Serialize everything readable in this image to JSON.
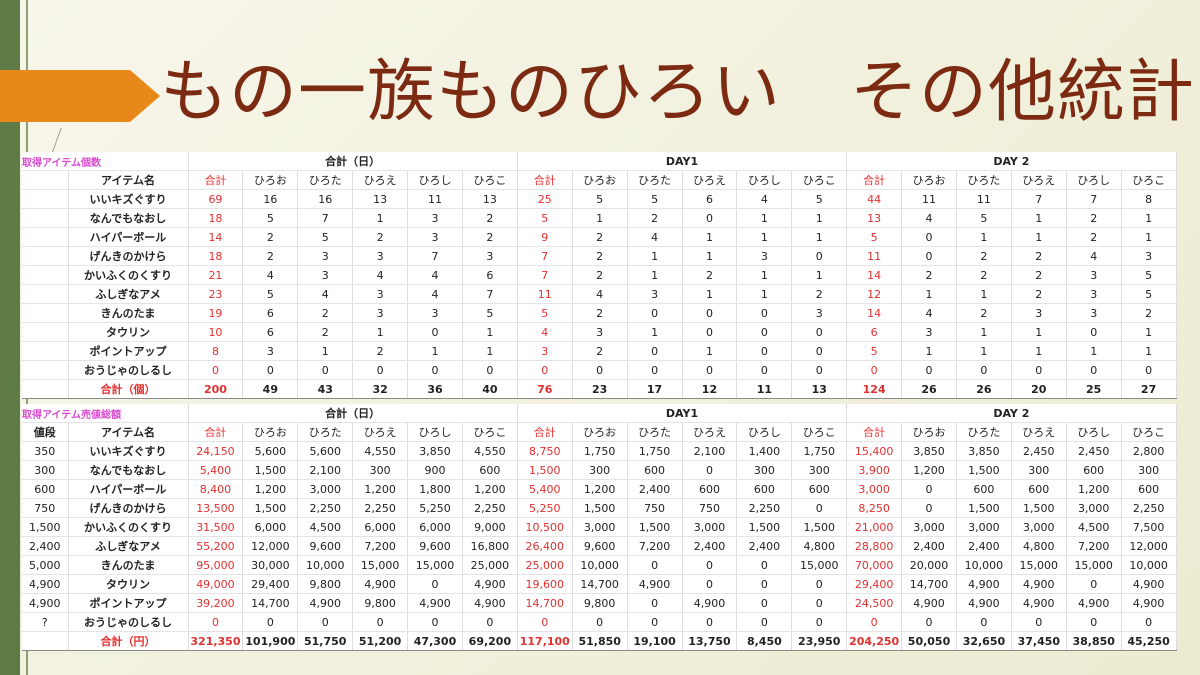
{
  "slide": {
    "title": "もの一族ものひろい　その他統計"
  },
  "colors": {
    "accent_arrow": "#e8871a",
    "title": "#7c2a12",
    "red": "#e23030",
    "pink": "#d84cd0",
    "sidebar": "#5e7a45"
  },
  "players": [
    "ひろお",
    "ひろた",
    "ひろえ",
    "ひろし",
    "ひろこ"
  ],
  "table1": {
    "label": "取得アイテム個数",
    "item_header": "アイテム名",
    "group_labels": [
      "合計（日）",
      "DAY1",
      "DAY 2"
    ],
    "sum_header": "合計",
    "rows": [
      {
        "name": "いいキズぐすり",
        "total": [
          "69",
          "16",
          "16",
          "13",
          "11",
          "13"
        ],
        "day1": [
          "25",
          "5",
          "5",
          "6",
          "4",
          "5"
        ],
        "day2": [
          "44",
          "11",
          "11",
          "7",
          "7",
          "8"
        ]
      },
      {
        "name": "なんでもなおし",
        "total": [
          "18",
          "5",
          "7",
          "1",
          "3",
          "2"
        ],
        "day1": [
          "5",
          "1",
          "2",
          "0",
          "1",
          "1"
        ],
        "day2": [
          "13",
          "4",
          "5",
          "1",
          "2",
          "1"
        ]
      },
      {
        "name": "ハイパーボール",
        "total": [
          "14",
          "2",
          "5",
          "2",
          "3",
          "2"
        ],
        "day1": [
          "9",
          "2",
          "4",
          "1",
          "1",
          "1"
        ],
        "day2": [
          "5",
          "0",
          "1",
          "1",
          "2",
          "1"
        ]
      },
      {
        "name": "げんきのかけら",
        "total": [
          "18",
          "2",
          "3",
          "3",
          "7",
          "3"
        ],
        "day1": [
          "7",
          "2",
          "1",
          "1",
          "3",
          "0"
        ],
        "day2": [
          "11",
          "0",
          "2",
          "2",
          "4",
          "3"
        ]
      },
      {
        "name": "かいふくのくすり",
        "total": [
          "21",
          "4",
          "3",
          "4",
          "4",
          "6"
        ],
        "day1": [
          "7",
          "2",
          "1",
          "2",
          "1",
          "1"
        ],
        "day2": [
          "14",
          "2",
          "2",
          "2",
          "3",
          "5"
        ]
      },
      {
        "name": "ふしぎなアメ",
        "total": [
          "23",
          "5",
          "4",
          "3",
          "4",
          "7"
        ],
        "day1": [
          "11",
          "4",
          "3",
          "1",
          "1",
          "2"
        ],
        "day2": [
          "12",
          "1",
          "1",
          "2",
          "3",
          "5"
        ]
      },
      {
        "name": "きんのたま",
        "total": [
          "19",
          "6",
          "2",
          "3",
          "3",
          "5"
        ],
        "day1": [
          "5",
          "2",
          "0",
          "0",
          "0",
          "3"
        ],
        "day2": [
          "14",
          "4",
          "2",
          "3",
          "3",
          "2"
        ]
      },
      {
        "name": "タウリン",
        "total": [
          "10",
          "6",
          "2",
          "1",
          "0",
          "1"
        ],
        "day1": [
          "4",
          "3",
          "1",
          "0",
          "0",
          "0"
        ],
        "day2": [
          "6",
          "3",
          "1",
          "1",
          "0",
          "1"
        ]
      },
      {
        "name": "ポイントアップ",
        "total": [
          "8",
          "3",
          "1",
          "2",
          "1",
          "1"
        ],
        "day1": [
          "3",
          "2",
          "0",
          "1",
          "0",
          "0"
        ],
        "day2": [
          "5",
          "1",
          "1",
          "1",
          "1",
          "1"
        ]
      },
      {
        "name": "おうじゃのしるし",
        "total": [
          "0",
          "0",
          "0",
          "0",
          "0",
          "0"
        ],
        "day1": [
          "0",
          "0",
          "0",
          "0",
          "0",
          "0"
        ],
        "day2": [
          "0",
          "0",
          "0",
          "0",
          "0",
          "0"
        ]
      }
    ],
    "sum_row": {
      "label": "合計（個）",
      "total": [
        "200",
        "49",
        "43",
        "32",
        "36",
        "40"
      ],
      "day1": [
        "76",
        "23",
        "17",
        "12",
        "11",
        "13"
      ],
      "day2": [
        "124",
        "26",
        "26",
        "20",
        "25",
        "27"
      ]
    }
  },
  "table2": {
    "label": "取得アイテム売値総額",
    "price_header": "値段",
    "item_header": "アイテム名",
    "group_labels": [
      "合計（日）",
      "DAY1",
      "DAY 2"
    ],
    "sum_header": "合計",
    "rows": [
      {
        "price": "350",
        "name": "いいキズぐすり",
        "total": [
          "24,150",
          "5,600",
          "5,600",
          "4,550",
          "3,850",
          "4,550"
        ],
        "day1": [
          "8,750",
          "1,750",
          "1,750",
          "2,100",
          "1,400",
          "1,750"
        ],
        "day2": [
          "15,400",
          "3,850",
          "3,850",
          "2,450",
          "2,450",
          "2,800"
        ]
      },
      {
        "price": "300",
        "name": "なんでもなおし",
        "total": [
          "5,400",
          "1,500",
          "2,100",
          "300",
          "900",
          "600"
        ],
        "day1": [
          "1,500",
          "300",
          "600",
          "0",
          "300",
          "300"
        ],
        "day2": [
          "3,900",
          "1,200",
          "1,500",
          "300",
          "600",
          "300"
        ]
      },
      {
        "price": "600",
        "name": "ハイパーボール",
        "total": [
          "8,400",
          "1,200",
          "3,000",
          "1,200",
          "1,800",
          "1,200"
        ],
        "day1": [
          "5,400",
          "1,200",
          "2,400",
          "600",
          "600",
          "600"
        ],
        "day2": [
          "3,000",
          "0",
          "600",
          "600",
          "1,200",
          "600"
        ]
      },
      {
        "price": "750",
        "name": "げんきのかけら",
        "total": [
          "13,500",
          "1,500",
          "2,250",
          "2,250",
          "5,250",
          "2,250"
        ],
        "day1": [
          "5,250",
          "1,500",
          "750",
          "750",
          "2,250",
          "0"
        ],
        "day2": [
          "8,250",
          "0",
          "1,500",
          "1,500",
          "3,000",
          "2,250"
        ]
      },
      {
        "price": "1,500",
        "name": "かいふくのくすり",
        "total": [
          "31,500",
          "6,000",
          "4,500",
          "6,000",
          "6,000",
          "9,000"
        ],
        "day1": [
          "10,500",
          "3,000",
          "1,500",
          "3,000",
          "1,500",
          "1,500"
        ],
        "day2": [
          "21,000",
          "3,000",
          "3,000",
          "3,000",
          "4,500",
          "7,500"
        ]
      },
      {
        "price": "2,400",
        "name": "ふしぎなアメ",
        "total": [
          "55,200",
          "12,000",
          "9,600",
          "7,200",
          "9,600",
          "16,800"
        ],
        "day1": [
          "26,400",
          "9,600",
          "7,200",
          "2,400",
          "2,400",
          "4,800"
        ],
        "day2": [
          "28,800",
          "2,400",
          "2,400",
          "4,800",
          "7,200",
          "12,000"
        ]
      },
      {
        "price": "5,000",
        "name": "きんのたま",
        "total": [
          "95,000",
          "30,000",
          "10,000",
          "15,000",
          "15,000",
          "25,000"
        ],
        "day1": [
          "25,000",
          "10,000",
          "0",
          "0",
          "0",
          "15,000"
        ],
        "day2": [
          "70,000",
          "20,000",
          "10,000",
          "15,000",
          "15,000",
          "10,000"
        ]
      },
      {
        "price": "4,900",
        "name": "タウリン",
        "total": [
          "49,000",
          "29,400",
          "9,800",
          "4,900",
          "0",
          "4,900"
        ],
        "day1": [
          "19,600",
          "14,700",
          "4,900",
          "0",
          "0",
          "0"
        ],
        "day2": [
          "29,400",
          "14,700",
          "4,900",
          "4,900",
          "0",
          "4,900"
        ]
      },
      {
        "price": "4,900",
        "name": "ポイントアップ",
        "total": [
          "39,200",
          "14,700",
          "4,900",
          "9,800",
          "4,900",
          "4,900"
        ],
        "day1": [
          "14,700",
          "9,800",
          "0",
          "4,900",
          "0",
          "0"
        ],
        "day2": [
          "24,500",
          "4,900",
          "4,900",
          "4,900",
          "4,900",
          "4,900"
        ]
      },
      {
        "price": "?",
        "name": "おうじゃのしるし",
        "total": [
          "0",
          "0",
          "0",
          "0",
          "0",
          "0"
        ],
        "day1": [
          "0",
          "0",
          "0",
          "0",
          "0",
          "0"
        ],
        "day2": [
          "0",
          "0",
          "0",
          "0",
          "0",
          "0"
        ]
      }
    ],
    "sum_row": {
      "label": "合計（円）",
      "total": [
        "321,350",
        "101,900",
        "51,750",
        "51,200",
        "47,300",
        "69,200"
      ],
      "day1": [
        "117,100",
        "51,850",
        "19,100",
        "13,750",
        "8,450",
        "23,950"
      ],
      "day2": [
        "204,250",
        "50,050",
        "32,650",
        "37,450",
        "38,850",
        "45,250"
      ]
    }
  }
}
